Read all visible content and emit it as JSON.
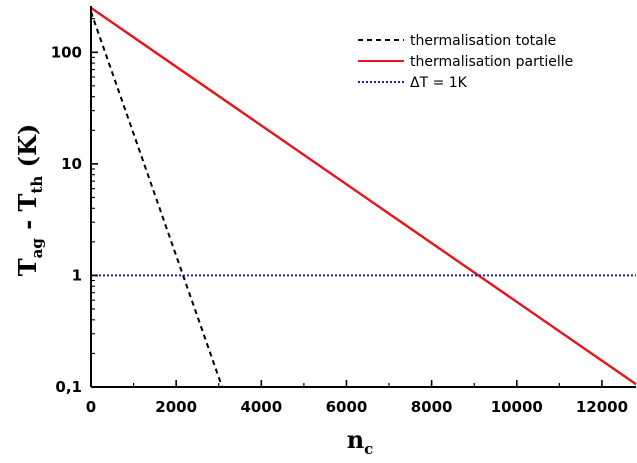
{
  "chart_data": {
    "type": "line",
    "xlabel": {
      "main": "n",
      "sub": "c"
    },
    "ylabel": {
      "parts": [
        {
          "text": "T",
          "sub": "ag"
        },
        {
          "text": " - T",
          "sub": "th"
        },
        {
          "text": " (K)",
          "sub": ""
        }
      ]
    },
    "xlim": [
      0,
      12800
    ],
    "ylim": [
      0.1,
      260
    ],
    "yscale": "log",
    "x_ticks": [
      {
        "value": 0,
        "label": "0"
      },
      {
        "value": 2000,
        "label": "2000"
      },
      {
        "value": 4000,
        "label": "4000"
      },
      {
        "value": 6000,
        "label": "6000"
      },
      {
        "value": 8000,
        "label": "8000"
      },
      {
        "value": 10000,
        "label": "10000"
      },
      {
        "value": 12000,
        "label": "12000"
      }
    ],
    "y_ticks": [
      {
        "value": 0.1,
        "label": "0,1"
      },
      {
        "value": 1,
        "label": "1"
      },
      {
        "value": 10,
        "label": "10"
      },
      {
        "value": 100,
        "label": "100"
      }
    ],
    "legend_position": "top-right",
    "series": [
      {
        "name": "thermalisation totale",
        "color": "#000000",
        "dash": "dashed",
        "x": [
          0,
          3080
        ],
        "y": [
          230,
          0.1
        ]
      },
      {
        "name": "thermalisation partielle",
        "color": "#e8141b",
        "dash": "solid",
        "x": [
          0,
          12800
        ],
        "y": [
          250,
          0.106
        ]
      },
      {
        "name": "ΔT = 1K",
        "color": "#1f1fd1",
        "dash": "dotted",
        "x": [
          0,
          12800
        ],
        "y": [
          1,
          1
        ]
      }
    ]
  }
}
